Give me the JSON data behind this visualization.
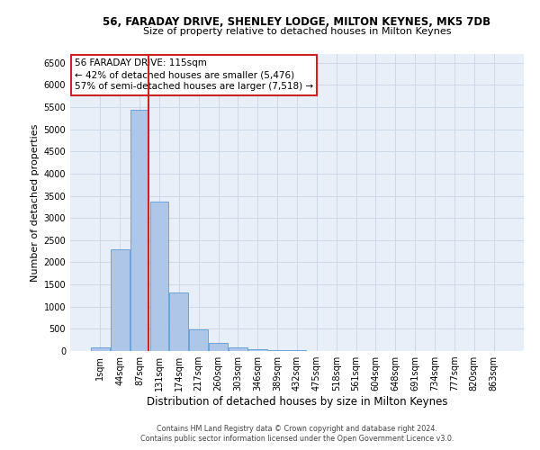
{
  "title": "56, FARADAY DRIVE, SHENLEY LODGE, MILTON KEYNES, MK5 7DB",
  "subtitle": "Size of property relative to detached houses in Milton Keynes",
  "xlabel": "Distribution of detached houses by size in Milton Keynes",
  "ylabel": "Number of detached properties",
  "footer_line1": "Contains HM Land Registry data © Crown copyright and database right 2024.",
  "footer_line2": "Contains public sector information licensed under the Open Government Licence v3.0.",
  "bar_labels": [
    "1sqm",
    "44sqm",
    "87sqm",
    "131sqm",
    "174sqm",
    "217sqm",
    "260sqm",
    "303sqm",
    "346sqm",
    "389sqm",
    "432sqm",
    "475sqm",
    "518sqm",
    "561sqm",
    "604sqm",
    "648sqm",
    "691sqm",
    "734sqm",
    "777sqm",
    "820sqm",
    "863sqm"
  ],
  "bar_values": [
    80,
    2300,
    5450,
    3380,
    1310,
    480,
    185,
    90,
    50,
    30,
    20,
    10,
    5,
    3,
    2,
    1,
    1,
    0,
    0,
    0,
    0
  ],
  "bar_color": "#aec6e8",
  "bar_edge_color": "#5b9bd5",
  "grid_color": "#cdd9e8",
  "background_color": "#e8eff8",
  "vline_position": 2.475,
  "vline_color": "#cc2222",
  "annotation_text_line1": "56 FARADAY DRIVE: 115sqm",
  "annotation_text_line2": "← 42% of detached houses are smaller (5,476)",
  "annotation_text_line3": "57% of semi-detached houses are larger (7,518) →",
  "annotation_box_facecolor": "white",
  "annotation_box_edgecolor": "#cc2222",
  "ylim": [
    0,
    6700
  ],
  "yticks": [
    0,
    500,
    1000,
    1500,
    2000,
    2500,
    3000,
    3500,
    4000,
    4500,
    5000,
    5500,
    6000,
    6500
  ],
  "title_fontsize": 8.5,
  "subtitle_fontsize": 8.0,
  "xlabel_fontsize": 8.5,
  "ylabel_fontsize": 8.0,
  "tick_fontsize": 7.0,
  "annotation_fontsize": 7.5,
  "footer_fontsize": 5.8
}
